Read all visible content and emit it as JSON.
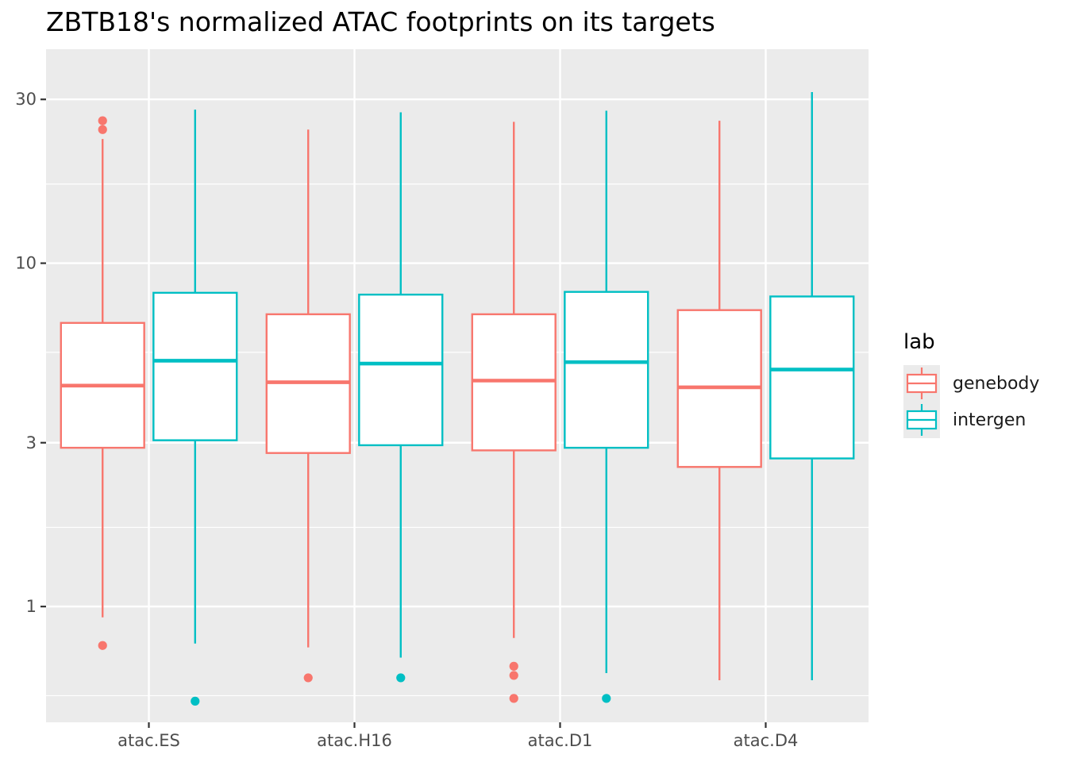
{
  "chart_data": {
    "type": "boxplot",
    "title": "ZBTB18's normalized ATAC footprints on its targets",
    "xlabel": "",
    "ylabel": "",
    "y_scale": "log10",
    "ylim": [
      0.46,
      42
    ],
    "y_ticks": [
      1,
      3,
      10,
      30
    ],
    "y_tick_labels": [
      "1",
      "3",
      "10",
      "30"
    ],
    "y_minor_ticks": [
      0.55,
      1.7,
      5.5,
      17
    ],
    "categories": [
      "atac.ES",
      "atac.H16",
      "atac.D1",
      "atac.D4"
    ],
    "grid": true,
    "legend": {
      "title": "lab",
      "position": "right"
    },
    "series": [
      {
        "name": "genebody",
        "color": "#F8766D",
        "boxes": [
          {
            "category": "atac.ES",
            "lower_whisker": 0.93,
            "q1": 2.9,
            "median": 4.4,
            "q3": 6.7,
            "upper_whisker": 23.0,
            "outliers": [
              0.77,
              24.5,
              26.0
            ]
          },
          {
            "category": "atac.H16",
            "lower_whisker": 0.76,
            "q1": 2.8,
            "median": 4.5,
            "q3": 7.1,
            "upper_whisker": 24.5,
            "outliers": [
              0.62
            ]
          },
          {
            "category": "atac.D1",
            "lower_whisker": 0.81,
            "q1": 2.85,
            "median": 4.55,
            "q3": 7.1,
            "upper_whisker": 25.8,
            "outliers": [
              0.54,
              0.63,
              0.67
            ]
          },
          {
            "category": "atac.D4",
            "lower_whisker": 0.61,
            "q1": 2.55,
            "median": 4.35,
            "q3": 7.3,
            "upper_whisker": 26.0,
            "outliers": []
          }
        ]
      },
      {
        "name": "intergen",
        "color": "#00BFC4",
        "boxes": [
          {
            "category": "atac.ES",
            "lower_whisker": 0.78,
            "q1": 3.05,
            "median": 5.2,
            "q3": 8.2,
            "upper_whisker": 28.0,
            "outliers": [
              0.53
            ]
          },
          {
            "category": "atac.H16",
            "lower_whisker": 0.71,
            "q1": 2.95,
            "median": 5.1,
            "q3": 8.1,
            "upper_whisker": 27.5,
            "outliers": [
              0.62
            ]
          },
          {
            "category": "atac.D1",
            "lower_whisker": 0.64,
            "q1": 2.9,
            "median": 5.15,
            "q3": 8.25,
            "upper_whisker": 27.8,
            "outliers": [
              0.54
            ]
          },
          {
            "category": "atac.D4",
            "lower_whisker": 0.61,
            "q1": 2.7,
            "median": 4.9,
            "q3": 8.0,
            "upper_whisker": 31.5,
            "outliers": []
          }
        ]
      }
    ]
  }
}
